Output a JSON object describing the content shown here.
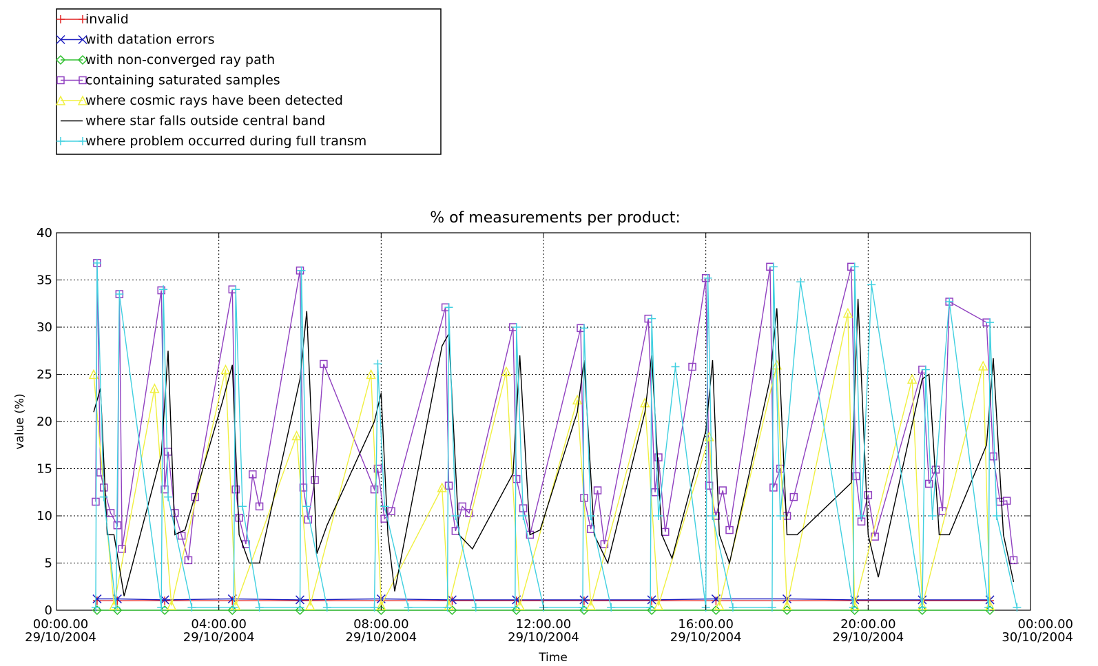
{
  "chart_data": {
    "type": "line",
    "title": "% of measurements per product:",
    "xlabel": "Time",
    "ylabel": "value (%)",
    "ylim": [
      0,
      40
    ],
    "yticks": [
      "0",
      "5",
      "10",
      "15",
      "20",
      "25",
      "30",
      "35",
      "40"
    ],
    "xlim": [
      "2004-10-29T00:00",
      "2004-10-30T00:00"
    ],
    "xticks": [
      {
        "time": "00:00.00",
        "date": "29/10/2004"
      },
      {
        "time": "04:00.00",
        "date": "29/10/2004"
      },
      {
        "time": "08:00.00",
        "date": "29/10/2004"
      },
      {
        "time": "12:00.00",
        "date": "29/10/2004"
      },
      {
        "time": "16:00.00",
        "date": "29/10/2004"
      },
      {
        "time": "20:00.00",
        "date": "29/10/2004"
      },
      {
        "time": "00:00.00",
        "date": "30/10/2004"
      }
    ],
    "grid": true,
    "legend_position": "top-left",
    "series": [
      {
        "name": "invalid",
        "color": "#e02020",
        "marker": "plus",
        "x": [
          "01:00",
          "01:30",
          "02:40",
          "04:20",
          "06:00",
          "08:00",
          "09:45",
          "11:20",
          "13:00",
          "14:40",
          "16:15",
          "18:00",
          "19:40",
          "21:20",
          "23:00"
        ],
        "y": [
          1,
          1,
          1,
          1,
          1,
          1,
          1,
          1,
          1,
          1,
          1,
          1,
          1,
          1,
          1
        ]
      },
      {
        "name": "with datation errors",
        "color": "#2020c0",
        "marker": "x",
        "x": [
          "01:00",
          "01:30",
          "02:40",
          "04:20",
          "06:00",
          "08:00",
          "09:45",
          "11:20",
          "13:00",
          "14:40",
          "16:15",
          "18:00",
          "19:40",
          "21:20",
          "23:00"
        ],
        "y": [
          1.2,
          1.2,
          1.1,
          1.2,
          1.1,
          1.2,
          1.1,
          1.1,
          1.1,
          1.1,
          1.2,
          1.2,
          1.1,
          1.1,
          1.1
        ]
      },
      {
        "name": "with non-converged ray path",
        "color": "#30c030",
        "marker": "diamond",
        "x": [
          "01:00",
          "01:30",
          "02:40",
          "04:20",
          "06:00",
          "08:00",
          "09:45",
          "11:20",
          "13:00",
          "14:40",
          "16:15",
          "18:00",
          "19:40",
          "21:20",
          "23:00"
        ],
        "y": [
          0,
          0,
          0,
          0,
          0,
          0,
          0,
          0,
          0,
          0,
          0,
          0,
          0,
          0,
          0
        ]
      },
      {
        "name": "containing saturated samples",
        "color": "#9040c0",
        "marker": "square",
        "x": [
          "00:58",
          "01:00",
          "01:05",
          "01:10",
          "01:20",
          "01:30",
          "01:33",
          "01:37",
          "02:35",
          "02:40",
          "02:45",
          "02:55",
          "03:05",
          "03:15",
          "03:25",
          "04:20",
          "04:25",
          "04:30",
          "04:40",
          "04:50",
          "05:00",
          "06:00",
          "06:05",
          "06:12",
          "06:22",
          "06:35",
          "07:50",
          "07:55",
          "08:05",
          "08:15",
          "09:35",
          "09:40",
          "09:50",
          "10:00",
          "10:10",
          "11:15",
          "11:20",
          "11:30",
          "11:40",
          "12:55",
          "13:00",
          "13:10",
          "13:20",
          "13:30",
          "14:35",
          "14:45",
          "14:50",
          "15:00",
          "15:40",
          "16:00",
          "16:05",
          "16:15",
          "16:25",
          "16:35",
          "17:35",
          "17:40",
          "17:50",
          "18:00",
          "18:10",
          "19:35",
          "19:42",
          "19:50",
          "20:00",
          "20:10",
          "21:20",
          "21:30",
          "21:40",
          "21:50",
          "22:00",
          "22:55",
          "23:05",
          "23:15",
          "23:25",
          "23:35"
        ],
        "y": [
          11.5,
          36.8,
          14.6,
          13,
          10.3,
          9,
          33.5,
          6.5,
          33.9,
          12.8,
          16.8,
          10.3,
          7.9,
          5.3,
          12,
          34,
          12.8,
          9.8,
          7,
          14.4,
          11,
          36,
          13,
          9.6,
          13.8,
          26.1,
          12.8,
          15,
          9.7,
          10.5,
          32.1,
          13.2,
          8.4,
          11,
          10.3,
          30,
          13.9,
          10.8,
          8,
          29.9,
          11.9,
          8.6,
          12.7,
          7,
          30.9,
          12.5,
          16.2,
          8.3,
          25.8,
          35.2,
          13.2,
          10,
          12.7,
          8.5,
          36.4,
          13,
          15,
          10,
          12,
          36.4,
          14.2,
          9.4,
          12.2,
          7.8,
          25.5,
          13.4,
          14.9,
          10.5,
          32.7,
          30.5,
          16.3,
          11.5,
          11.6,
          5.3
        ]
      },
      {
        "name": "where cosmic rays have been detected",
        "color": "#f0f040",
        "marker": "triangle",
        "x": [
          "00:55",
          "01:25",
          "02:25",
          "02:50",
          "04:10",
          "04:25",
          "05:55",
          "06:15",
          "07:45",
          "08:00",
          "09:30",
          "09:40",
          "11:05",
          "11:25",
          "12:50",
          "13:10",
          "14:30",
          "14:50",
          "16:05",
          "16:20",
          "17:45",
          "18:00",
          "19:30",
          "19:40",
          "21:05",
          "21:20",
          "22:50",
          "23:00"
        ],
        "y": [
          25,
          0.5,
          23.5,
          0.5,
          25.5,
          0.5,
          18.5,
          0.5,
          25,
          0.5,
          13,
          0.5,
          25.3,
          0.5,
          22.3,
          0.5,
          22,
          0.5,
          18.4,
          0.5,
          26,
          0.5,
          31.5,
          0.5,
          24.5,
          0.5,
          25.9,
          0.5
        ]
      },
      {
        "name": "where star falls outside central band",
        "color": "#000000",
        "marker": "none",
        "x": [
          "00:55",
          "01:05",
          "01:15",
          "01:25",
          "01:40",
          "02:35",
          "02:45",
          "02:55",
          "03:10",
          "04:05",
          "04:20",
          "04:30",
          "04:45",
          "05:00",
          "06:00",
          "06:10",
          "06:25",
          "06:40",
          "07:50",
          "08:00",
          "08:10",
          "08:20",
          "09:30",
          "09:40",
          "09:55",
          "10:15",
          "11:15",
          "11:25",
          "11:40",
          "11:55",
          "12:50",
          "13:00",
          "13:15",
          "13:35",
          "14:30",
          "14:40",
          "14:55",
          "15:10",
          "16:00",
          "16:10",
          "16:20",
          "16:35",
          "17:35",
          "17:45",
          "18:00",
          "18:15",
          "19:35",
          "19:45",
          "20:00",
          "20:15",
          "21:20",
          "21:30",
          "21:45",
          "22:00",
          "22:55",
          "23:05",
          "23:20",
          "23:35"
        ],
        "y": [
          21,
          23.5,
          8,
          8,
          1.5,
          16.5,
          27.5,
          8,
          8.5,
          22,
          26,
          8,
          5,
          5,
          24.5,
          31.7,
          6,
          9,
          20,
          23,
          8,
          2,
          28,
          29.3,
          8,
          6.5,
          14.5,
          27,
          8,
          8.5,
          21,
          26.5,
          8,
          5,
          21,
          27,
          8,
          5.5,
          19,
          26.5,
          8,
          5,
          24.5,
          32,
          8,
          8,
          13.5,
          33,
          8,
          3.5,
          24.5,
          25,
          8,
          8,
          17.5,
          26.7,
          8,
          3
        ]
      },
      {
        "name": "where problem occurred during full transm",
        "color": "#40d0e0",
        "marker": "plus",
        "x": [
          "00:58",
          "01:00",
          "01:10",
          "01:28",
          "01:33",
          "02:35",
          "02:38",
          "02:45",
          "03:20",
          "04:22",
          "04:25",
          "04:35",
          "05:00",
          "06:00",
          "06:02",
          "06:10",
          "06:40",
          "07:50",
          "07:55",
          "08:05",
          "08:40",
          "09:38",
          "09:40",
          "09:50",
          "10:20",
          "11:18",
          "11:20",
          "11:30",
          "12:00",
          "12:58",
          "13:00",
          "13:10",
          "13:40",
          "14:38",
          "14:40",
          "14:50",
          "15:15",
          "16:00",
          "16:03",
          "16:10",
          "16:40",
          "17:38",
          "17:40",
          "17:50",
          "18:20",
          "19:38",
          "19:40",
          "19:50",
          "20:05",
          "21:20",
          "21:25",
          "21:35",
          "22:00",
          "22:58",
          "23:00",
          "23:10",
          "23:40"
        ],
        "y": [
          0.3,
          36.8,
          12,
          0.3,
          33.5,
          0.3,
          34,
          12,
          0.3,
          0.3,
          34,
          11,
          0.3,
          0.3,
          36,
          11,
          0.3,
          0.3,
          26.1,
          11,
          0.3,
          0.3,
          32.1,
          10,
          0.3,
          0.3,
          30,
          10,
          0.3,
          0.3,
          29.9,
          10,
          0.3,
          0.3,
          30.9,
          10,
          25.8,
          0.3,
          35.2,
          10,
          0.3,
          0.3,
          36.4,
          10,
          34.8,
          0.3,
          36.4,
          10,
          34.5,
          0.3,
          25.5,
          10,
          32.7,
          0.3,
          30.5,
          10,
          0.3
        ]
      }
    ]
  }
}
